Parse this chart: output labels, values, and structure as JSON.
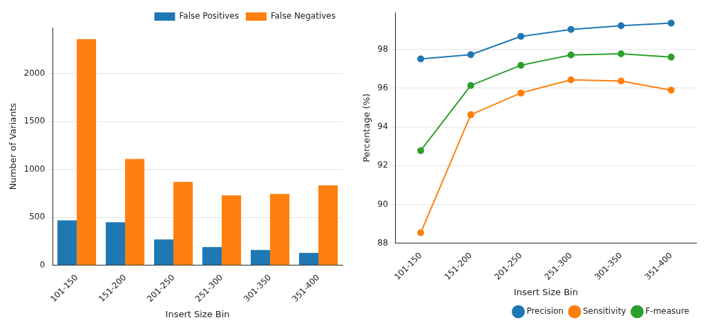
{
  "chart_data": [
    {
      "type": "bar",
      "xlabel": "Insert Size Bin",
      "ylabel": "Number of Variants",
      "categories": [
        "101-150",
        "151-200",
        "201-250",
        "251-300",
        "301-350",
        "351-400"
      ],
      "series": [
        {
          "name": "False Positives",
          "color": "#1f77b4",
          "values": [
            470,
            450,
            270,
            190,
            160,
            130
          ]
        },
        {
          "name": "False Negatives",
          "color": "#ff7f0e",
          "values": [
            2360,
            1110,
            870,
            730,
            745,
            835
          ]
        }
      ],
      "ylim": [
        0,
        2480
      ],
      "yticks": [
        0,
        500,
        1000,
        1500,
        2000
      ],
      "grid": "y",
      "legend": "top right"
    },
    {
      "type": "line",
      "xlabel": "Insert Size Bin",
      "ylabel": "Percentage (%)",
      "categories": [
        "101-150",
        "151-200",
        "201-250",
        "251-300",
        "301-350",
        "351-400"
      ],
      "series": [
        {
          "name": "Precision",
          "color": "#1f77b4",
          "values": [
            97.51,
            97.73,
            98.67,
            99.03,
            99.22,
            99.36
          ]
        },
        {
          "name": "Sensitivity",
          "color": "#ff7f0e",
          "values": [
            88.54,
            94.63,
            95.75,
            96.43,
            96.37,
            95.9
          ]
        },
        {
          "name": "F-measure",
          "color": "#2ca02c",
          "values": [
            92.78,
            96.14,
            97.18,
            97.71,
            97.77,
            97.6
          ]
        }
      ],
      "ylim": [
        88,
        99.9
      ],
      "yticks": [
        88,
        90,
        92,
        94,
        96,
        98
      ],
      "grid": "y",
      "legend": "bottom right",
      "marker": "circle"
    }
  ]
}
